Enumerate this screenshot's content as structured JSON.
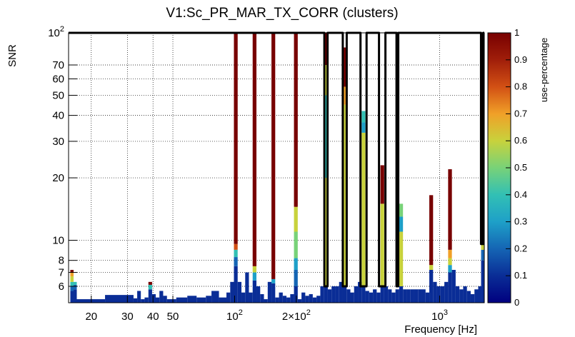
{
  "chart_data": {
    "type": "heatmap",
    "title": "V1:Sc_PR_MAR_TX_CORR (clusters)",
    "xlabel": "Frequency [Hz]",
    "ylabel": "SNR",
    "zlabel": "use-percentage",
    "x_scale": "log",
    "y_scale": "log",
    "xlim": [
      15.5,
      1650
    ],
    "ylim": [
      5.0,
      100
    ],
    "zlim": [
      0,
      1
    ],
    "grid": true,
    "x_ticks": [
      {
        "value": 20,
        "label": "20"
      },
      {
        "value": 30,
        "label": "30"
      },
      {
        "value": 40,
        "label": "40"
      },
      {
        "value": 50,
        "label": "50"
      },
      {
        "value": 100,
        "label": "10",
        "exp": "2"
      },
      {
        "value": 200,
        "label": "2×10",
        "exp": "2"
      },
      {
        "value": 1000,
        "label": "10",
        "exp": "3"
      }
    ],
    "y_ticks": [
      {
        "value": 6,
        "label": "6"
      },
      {
        "value": 7,
        "label": "7"
      },
      {
        "value": 8,
        "label": "8"
      },
      {
        "value": 10,
        "label": "10"
      },
      {
        "value": 20,
        "label": "20"
      },
      {
        "value": 30,
        "label": "30"
      },
      {
        "value": 40,
        "label": "40"
      },
      {
        "value": 50,
        "label": "50"
      },
      {
        "value": 60,
        "label": "60"
      },
      {
        "value": 70,
        "label": "70"
      },
      {
        "value": 100,
        "label": "10",
        "exp": "2"
      }
    ],
    "z_ticks": [
      {
        "value": 0,
        "label": "0"
      },
      {
        "value": 0.1,
        "label": "0.1"
      },
      {
        "value": 0.2,
        "label": "0.2"
      },
      {
        "value": 0.3,
        "label": "0.3"
      },
      {
        "value": 0.4,
        "label": "0.4"
      },
      {
        "value": 0.5,
        "label": "0.5"
      },
      {
        "value": 0.6,
        "label": "0.6"
      },
      {
        "value": 0.7,
        "label": "0.7"
      },
      {
        "value": 0.8,
        "label": "0.8"
      },
      {
        "value": 0.9,
        "label": "0.9"
      },
      {
        "value": 1,
        "label": "1"
      }
    ],
    "colormap": [
      "#000080",
      "#0a2d96",
      "#1565b4",
      "#1ea0c8",
      "#32c0b4",
      "#78d278",
      "#c8d23c",
      "#f0a028",
      "#d25014",
      "#a01e0a",
      "#780000"
    ],
    "columns": [
      {
        "f": 16.1,
        "top": 7.2,
        "stack": [
          [
            5.7,
            0.05
          ],
          [
            6.0,
            0.2
          ],
          [
            6.3,
            0.35
          ],
          [
            6.7,
            0.55
          ],
          [
            7.0,
            0.7
          ],
          [
            7.2,
            0.95
          ]
        ]
      },
      {
        "f": 16.7,
        "top": 6.3,
        "stack": [
          [
            5.8,
            0.05
          ],
          [
            6.1,
            0.2
          ],
          [
            6.3,
            0.4
          ]
        ]
      },
      {
        "f": 17.3,
        "top": 5.2,
        "stack": [
          [
            5.2,
            0.05
          ]
        ]
      },
      {
        "f": 31.5,
        "top": 5.45,
        "stack": [
          [
            5.45,
            0.05
          ]
        ]
      },
      {
        "f": 32.8,
        "top": 5.25,
        "stack": [
          [
            5.25,
            0.05
          ]
        ]
      },
      {
        "f": 34.2,
        "top": 5.7,
        "stack": [
          [
            5.7,
            0.05
          ]
        ]
      },
      {
        "f": 35.6,
        "top": 5.2,
        "stack": [
          [
            5.2,
            0.05
          ]
        ]
      },
      {
        "f": 37.2,
        "top": 5.3,
        "stack": [
          [
            5.3,
            0.05
          ]
        ]
      },
      {
        "f": 38.8,
        "top": 6.3,
        "stack": [
          [
            5.8,
            0.05
          ],
          [
            6.1,
            0.4
          ],
          [
            6.3,
            0.95
          ]
        ]
      },
      {
        "f": 40.4,
        "top": 5.5,
        "stack": [
          [
            5.5,
            0.05
          ]
        ]
      },
      {
        "f": 42.1,
        "top": 5.3,
        "stack": [
          [
            5.3,
            0.05
          ]
        ]
      },
      {
        "f": 43.9,
        "top": 5.7,
        "stack": [
          [
            5.7,
            0.05
          ]
        ]
      },
      {
        "f": 45.8,
        "top": 5.4,
        "stack": [
          [
            5.4,
            0.05
          ]
        ]
      },
      {
        "f": 47.8,
        "top": 5.2,
        "stack": [
          [
            5.2,
            0.05
          ]
        ]
      },
      {
        "f": 56.4,
        "top": 5.3,
        "stack": [
          [
            5.3,
            0.05
          ]
        ]
      },
      {
        "f": 61.3,
        "top": 5.4,
        "stack": [
          [
            5.4,
            0.05
          ]
        ]
      },
      {
        "f": 69.5,
        "top": 5.3,
        "stack": [
          [
            5.3,
            0.05
          ]
        ]
      },
      {
        "f": 75.5,
        "top": 5.4,
        "stack": [
          [
            5.4,
            0.05
          ]
        ]
      },
      {
        "f": 78.8,
        "top": 5.7,
        "stack": [
          [
            5.7,
            0.05
          ]
        ]
      },
      {
        "f": 89.3,
        "top": 5.3,
        "stack": [
          [
            5.3,
            0.05
          ]
        ]
      },
      {
        "f": 93.2,
        "top": 5.6,
        "stack": [
          [
            5.6,
            0.05
          ]
        ]
      },
      {
        "f": 97.2,
        "top": 6.3,
        "stack": [
          [
            6.3,
            0.05
          ]
        ]
      },
      {
        "f": 101.3,
        "top": 100,
        "stack": [
          [
            7.5,
            0.05
          ],
          [
            8.3,
            0.2
          ],
          [
            9.0,
            0.35
          ],
          [
            9.6,
            0.8
          ],
          [
            100,
            1.0
          ]
        ]
      },
      {
        "f": 105.7,
        "top": 6.3,
        "stack": [
          [
            6.3,
            0.05
          ]
        ]
      },
      {
        "f": 110.3,
        "top": 5.6,
        "stack": [
          [
            5.6,
            0.05
          ]
        ]
      },
      {
        "f": 115.0,
        "top": 7.0,
        "stack": [
          [
            7.0,
            0.05
          ]
        ]
      },
      {
        "f": 119.9,
        "top": 5.6,
        "stack": [
          [
            5.6,
            0.05
          ]
        ]
      },
      {
        "f": 125.1,
        "top": 100,
        "stack": [
          [
            6.4,
            0.05
          ],
          [
            7.0,
            0.3
          ],
          [
            7.5,
            0.55
          ],
          [
            100,
            1.0
          ]
        ]
      },
      {
        "f": 130.5,
        "top": 6.0,
        "stack": [
          [
            6.0,
            0.05
          ]
        ]
      },
      {
        "f": 136.1,
        "top": 5.5,
        "stack": [
          [
            5.5,
            0.05
          ]
        ]
      },
      {
        "f": 142.0,
        "top": 5.2,
        "stack": [
          [
            5.2,
            0.05
          ]
        ]
      },
      {
        "f": 148.1,
        "top": 6.3,
        "stack": [
          [
            6.3,
            0.05
          ]
        ]
      },
      {
        "f": 154.5,
        "top": 100,
        "stack": [
          [
            6.2,
            0.05
          ],
          [
            6.5,
            0.3
          ],
          [
            100,
            1.0
          ]
        ]
      },
      {
        "f": 161.1,
        "top": 5.3,
        "stack": [
          [
            5.3,
            0.05
          ]
        ]
      },
      {
        "f": 168.1,
        "top": 5.6,
        "stack": [
          [
            5.6,
            0.05
          ]
        ]
      },
      {
        "f": 175.3,
        "top": 5.4,
        "stack": [
          [
            5.4,
            0.05
          ]
        ]
      },
      {
        "f": 182.9,
        "top": 5.3,
        "stack": [
          [
            5.3,
            0.05
          ]
        ]
      },
      {
        "f": 190.7,
        "top": 5.5,
        "stack": [
          [
            5.5,
            0.05
          ]
        ]
      },
      {
        "f": 198.9,
        "top": 100,
        "stack": [
          [
            6.0,
            0.05
          ],
          [
            7.2,
            0.2
          ],
          [
            8.2,
            0.3
          ],
          [
            11.0,
            0.45
          ],
          [
            14.5,
            0.6
          ],
          [
            100,
            1.0
          ]
        ]
      },
      {
        "f": 207.5,
        "top": 5.2,
        "stack": [
          [
            5.2,
            0.05
          ]
        ]
      },
      {
        "f": 216.4,
        "top": 5.6,
        "stack": [
          [
            5.6,
            0.05
          ]
        ]
      },
      {
        "f": 225.8,
        "top": 5.4,
        "stack": [
          [
            5.4,
            0.05
          ]
        ]
      },
      {
        "f": 235.5,
        "top": 5.5,
        "stack": [
          [
            5.5,
            0.05
          ]
        ]
      },
      {
        "f": 245.6,
        "top": 5.3,
        "stack": [
          [
            5.3,
            0.05
          ]
        ]
      },
      {
        "f": 256.2,
        "top": 5.4,
        "stack": [
          [
            5.4,
            0.05
          ]
        ]
      },
      {
        "f": 267.3,
        "top": 6.0,
        "stack": [
          [
            6.0,
            0.05
          ]
        ]
      },
      {
        "f": 278.8,
        "top": 100,
        "stack": [
          [
            6.0,
            0.05
          ],
          [
            20.0,
            0.62
          ],
          [
            50.0,
            0.35
          ],
          [
            70.0,
            0.6
          ],
          [
            100,
            1.0
          ]
        ]
      },
      {
        "f": 290.8,
        "top": 5.8,
        "stack": [
          [
            5.8,
            0.05
          ]
        ]
      },
      {
        "f": 303.3,
        "top": 6.0,
        "stack": [
          [
            6.0,
            0.05
          ]
        ]
      },
      {
        "f": 316.4,
        "top": 6.0,
        "stack": [
          [
            6.0,
            0.05
          ]
        ]
      },
      {
        "f": 330.1,
        "top": 6.3,
        "stack": [
          [
            6.3,
            0.05
          ]
        ]
      },
      {
        "f": 344.3,
        "top": 85,
        "stack": [
          [
            6.0,
            0.05
          ],
          [
            20.0,
            0.62
          ],
          [
            45.0,
            0.55
          ],
          [
            55.0,
            0.65
          ],
          [
            85,
            1.0
          ]
        ]
      },
      {
        "f": 359.2,
        "top": 5.8,
        "stack": [
          [
            5.8,
            0.05
          ]
        ]
      },
      {
        "f": 374.6,
        "top": 5.6,
        "stack": [
          [
            5.6,
            0.05
          ]
        ]
      },
      {
        "f": 390.8,
        "top": 6.0,
        "stack": [
          [
            6.0,
            0.05
          ]
        ]
      },
      {
        "f": 407.6,
        "top": 6.3,
        "stack": [
          [
            6.3,
            0.05
          ]
        ]
      },
      {
        "f": 425.2,
        "top": 42,
        "stack": [
          [
            6.0,
            0.05
          ],
          [
            33.0,
            0.62
          ],
          [
            37.0,
            0.3
          ],
          [
            42.0,
            0.4
          ]
        ]
      },
      {
        "f": 443.5,
        "top": 5.7,
        "stack": [
          [
            5.7,
            0.05
          ]
        ]
      },
      {
        "f": 462.6,
        "top": 5.6,
        "stack": [
          [
            5.6,
            0.05
          ]
        ]
      },
      {
        "f": 482.6,
        "top": 5.8,
        "stack": [
          [
            5.8,
            0.05
          ]
        ]
      },
      {
        "f": 503.4,
        "top": 5.6,
        "stack": [
          [
            5.6,
            0.05
          ]
        ]
      },
      {
        "f": 525.1,
        "top": 23,
        "stack": [
          [
            6.0,
            0.05
          ],
          [
            15.0,
            0.62
          ],
          [
            23.0,
            1.0
          ]
        ]
      },
      {
        "f": 547.7,
        "top": 6.0,
        "stack": [
          [
            6.0,
            0.05
          ]
        ]
      },
      {
        "f": 571.3,
        "top": 5.8,
        "stack": [
          [
            5.8,
            0.05
          ]
        ]
      },
      {
        "f": 596.0,
        "top": 5.6,
        "stack": [
          [
            5.6,
            0.05
          ]
        ]
      },
      {
        "f": 621.6,
        "top": 5.8,
        "stack": [
          [
            5.8,
            0.05
          ]
        ]
      },
      {
        "f": 648.4,
        "top": 15,
        "stack": [
          [
            6.0,
            0.05
          ],
          [
            11.0,
            0.62
          ],
          [
            13.0,
            0.3
          ],
          [
            15.0,
            0.45
          ]
        ]
      },
      {
        "f": 676.4,
        "top": 5.8,
        "stack": [
          [
            5.8,
            0.05
          ]
        ]
      },
      {
        "f": 705.6,
        "top": 5.8,
        "stack": [
          [
            5.8,
            0.05
          ]
        ]
      },
      {
        "f": 736.0,
        "top": 5.8,
        "stack": [
          [
            5.8,
            0.05
          ]
        ]
      },
      {
        "f": 767.8,
        "top": 5.8,
        "stack": [
          [
            5.8,
            0.05
          ]
        ]
      },
      {
        "f": 800.9,
        "top": 5.8,
        "stack": [
          [
            5.8,
            0.05
          ]
        ]
      },
      {
        "f": 835.5,
        "top": 5.8,
        "stack": [
          [
            5.8,
            0.05
          ]
        ]
      },
      {
        "f": 871.5,
        "top": 5.6,
        "stack": [
          [
            5.6,
            0.05
          ]
        ]
      },
      {
        "f": 909.1,
        "top": 16.5,
        "stack": [
          [
            7.2,
            0.05
          ],
          [
            7.6,
            0.55
          ],
          [
            16.5,
            1.0
          ]
        ]
      },
      {
        "f": 948.3,
        "top": 6.3,
        "stack": [
          [
            6.3,
            0.05
          ]
        ]
      },
      {
        "f": 989.2,
        "top": 6.0,
        "stack": [
          [
            6.0,
            0.05
          ]
        ]
      },
      {
        "f": 1031.9,
        "top": 6.0,
        "stack": [
          [
            6.0,
            0.05
          ]
        ]
      },
      {
        "f": 1076.4,
        "top": 6.3,
        "stack": [
          [
            6.3,
            0.05
          ]
        ]
      },
      {
        "f": 1122.9,
        "top": 22,
        "stack": [
          [
            7.0,
            0.05
          ],
          [
            7.6,
            0.3
          ],
          [
            8.2,
            0.55
          ],
          [
            9.0,
            0.7
          ],
          [
            22.0,
            1.0
          ]
        ]
      },
      {
        "f": 1171.3,
        "top": 7.2,
        "stack": [
          [
            7.2,
            0.05
          ]
        ]
      },
      {
        "f": 1221.8,
        "top": 6.0,
        "stack": [
          [
            6.0,
            0.05
          ]
        ]
      },
      {
        "f": 1274.5,
        "top": 5.8,
        "stack": [
          [
            5.8,
            0.05
          ]
        ]
      },
      {
        "f": 1329.5,
        "top": 6.0,
        "stack": [
          [
            6.0,
            0.05
          ]
        ]
      },
      {
        "f": 1386.8,
        "top": 5.7,
        "stack": [
          [
            5.7,
            0.05
          ]
        ]
      },
      {
        "f": 1446.7,
        "top": 5.5,
        "stack": [
          [
            5.5,
            0.05
          ]
        ]
      },
      {
        "f": 1509.1,
        "top": 5.8,
        "stack": [
          [
            5.8,
            0.05
          ]
        ]
      },
      {
        "f": 1574.2,
        "top": 6.0,
        "stack": [
          [
            6.0,
            0.05
          ]
        ]
      },
      {
        "f": 1610,
        "top": 100,
        "stack": [
          [
            8.0,
            0.05
          ],
          [
            9.0,
            0.2
          ],
          [
            9.5,
            0.62
          ],
          [
            100,
            1.0
          ]
        ]
      }
    ],
    "overlay_frequencies": [
      [
        274,
        284
      ],
      [
        337,
        352
      ],
      [
        411,
        440
      ],
      [
        506,
        544
      ],
      [
        616,
        628
      ],
      [
        1590,
        1630
      ]
    ]
  }
}
